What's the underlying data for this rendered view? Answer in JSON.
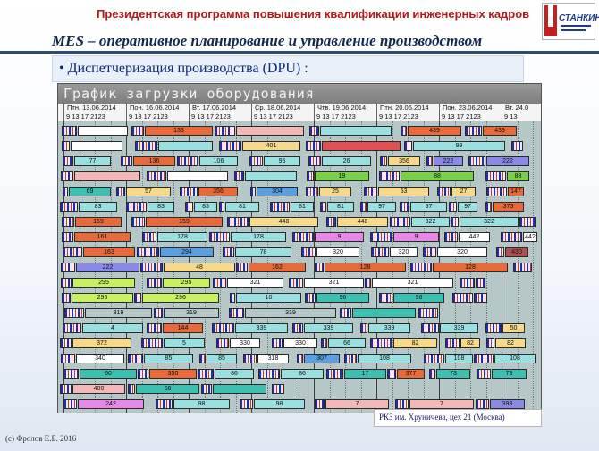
{
  "header": {
    "banner": "Президентская  программа повышения квалификации инженерных кадров",
    "logo_text": "СТАНКИН",
    "subtitle": "MES – оперативное планирование и управление производством",
    "bullet": "• Диспетчеризация производства  (DPU) :"
  },
  "gantt": {
    "title": "График  загрузки  оборудования",
    "days": [
      {
        "label": "Птн. 13.06.2014",
        "hours": "9   13  17  2123"
      },
      {
        "label": "Пон. 16.06.2014",
        "hours": "9   13  17  2123"
      },
      {
        "label": "Вт. 17.06.2014",
        "hours": "9   13  17  2123"
      },
      {
        "label": "Ср. 18.06.2014",
        "hours": "9   13  17  2123"
      },
      {
        "label": "Чтв. 19.06.2014",
        "hours": "9   13  17  2123"
      },
      {
        "label": "Птн. 20.06.2014",
        "hours": "9   13  17  2123"
      },
      {
        "label": "Пон. 23.06.2014",
        "hours": "9   13  17  2123"
      },
      {
        "label": "Вт. 24.0",
        "hours": "9   13"
      }
    ],
    "rows": [
      [
        {
          "t": "",
          "c": "#ffffff"
        },
        {
          "t": "133",
          "c": "#e86a3a"
        },
        {
          "t": "",
          "c": "#f3b7b7"
        },
        {
          "t": "",
          "c": "#9be0e0"
        },
        {
          "t": "439",
          "c": "#e86a3a"
        },
        {
          "t": "439",
          "c": "#e86a3a"
        }
      ],
      [
        {
          "t": "",
          "c": "#ffffff"
        },
        {
          "t": "",
          "c": "#9be0e0"
        },
        {
          "t": "401",
          "c": "#f6d98a"
        },
        {
          "t": "",
          "c": "#e05050"
        },
        {
          "t": "99",
          "c": "#9be0e0"
        }
      ],
      [
        {
          "t": "77",
          "c": "#9be0e0"
        },
        {
          "t": "136",
          "c": "#e86a3a"
        },
        {
          "t": "106",
          "c": "#9be0e0"
        },
        {
          "t": "95",
          "c": "#9be0e0"
        },
        {
          "t": "26",
          "c": "#9be0e0"
        },
        {
          "t": "356",
          "c": "#f6d98a"
        },
        {
          "t": "222",
          "c": "#8a8ae6"
        },
        {
          "t": "222",
          "c": "#8a8ae6"
        }
      ],
      [
        {
          "t": "",
          "c": "#f3b7b7"
        },
        {
          "t": "",
          "c": "#ffffff"
        },
        {
          "t": "",
          "c": "#9be0e0"
        },
        {
          "t": "19",
          "c": "#7ad04a"
        },
        {
          "t": "88",
          "c": "#7ad04a"
        },
        {
          "t": "88",
          "c": "#7ad04a"
        }
      ],
      [
        {
          "t": "69",
          "c": "#3ec0b0"
        },
        {
          "t": "57",
          "c": "#f6d98a"
        },
        {
          "t": "356",
          "c": "#e86a3a"
        },
        {
          "t": "304",
          "c": "#5aa0e0"
        },
        {
          "t": "25",
          "c": "#f6d98a"
        },
        {
          "t": "53",
          "c": "#f6d98a"
        },
        {
          "t": "27",
          "c": "#f6d98a"
        },
        {
          "t": "147",
          "c": "#e86a3a"
        }
      ],
      [
        {
          "t": "83",
          "c": "#9be0e0"
        },
        {
          "t": "83",
          "c": "#9be0e0"
        },
        {
          "t": "83",
          "c": "#9be0e0"
        },
        {
          "t": "81",
          "c": "#9be0e0"
        },
        {
          "t": "81",
          "c": "#9be0e0"
        },
        {
          "t": "81",
          "c": "#9be0e0"
        },
        {
          "t": "97",
          "c": "#9be0e0"
        },
        {
          "t": "97",
          "c": "#9be0e0"
        },
        {
          "t": "97",
          "c": "#9be0e0"
        },
        {
          "t": "373",
          "c": "#e86a3a"
        }
      ],
      [
        {
          "t": "159",
          "c": "#e86a3a"
        },
        {
          "t": "159",
          "c": "#e86a3a"
        },
        {
          "t": "448",
          "c": "#f6d98a"
        },
        {
          "t": "448",
          "c": "#f6d98a"
        },
        {
          "t": "322",
          "c": "#9be0e0"
        },
        {
          "t": "322",
          "c": "#9be0e0"
        }
      ],
      [
        {
          "t": "161",
          "c": "#e86a3a"
        },
        {
          "t": "178",
          "c": "#9be0e0"
        },
        {
          "t": "178",
          "c": "#9be0e0"
        },
        {
          "t": "9",
          "c": "#e888e8"
        },
        {
          "t": "9",
          "c": "#e888e8"
        },
        {
          "t": "442",
          "c": "#ffffff"
        },
        {
          "t": "442",
          "c": "#ffffff"
        }
      ],
      [
        {
          "t": "163",
          "c": "#e86a3a"
        },
        {
          "t": "294",
          "c": "#5aa0e0"
        },
        {
          "t": "78",
          "c": "#9be0e0"
        },
        {
          "t": "320",
          "c": "#ffffff"
        },
        {
          "t": "320",
          "c": "#ffffff"
        },
        {
          "t": "320",
          "c": "#ffffff"
        },
        {
          "t": "430",
          "c": "#b05050"
        }
      ],
      [
        {
          "t": "222",
          "c": "#8a8ae6"
        },
        {
          "t": "48",
          "c": "#f6d98a"
        },
        {
          "t": "162",
          "c": "#e86a3a"
        },
        {
          "t": "128",
          "c": "#e86a3a"
        },
        {
          "t": "128",
          "c": "#e86a3a"
        }
      ],
      [
        {
          "t": "295",
          "c": "#c8f060"
        },
        {
          "t": "295",
          "c": "#c8f060"
        },
        {
          "t": "321",
          "c": "#ffffff"
        },
        {
          "t": "321",
          "c": "#ffffff"
        },
        {
          "t": "321",
          "c": "#ffffff"
        },
        {
          "t": "",
          "c": "#3ec0b0"
        }
      ],
      [
        {
          "t": "296",
          "c": "#c8f060"
        },
        {
          "t": "296",
          "c": "#c8f060"
        },
        {
          "t": "10",
          "c": "#9be0e0"
        },
        {
          "t": "96",
          "c": "#3ec0b0"
        },
        {
          "t": "96",
          "c": "#3ec0b0"
        },
        {
          "t": "96",
          "c": "#3ec0b0"
        }
      ],
      [
        {
          "t": "319",
          "c": "#b6c7c7"
        },
        {
          "t": "319",
          "c": "#b6c7c7"
        },
        {
          "t": "319",
          "c": "#b6c7c7"
        },
        {
          "t": "",
          "c": "#3ec0b0"
        }
      ],
      [
        {
          "t": "4",
          "c": "#9be0e0"
        },
        {
          "t": "144",
          "c": "#e86a3a"
        },
        {
          "t": "339",
          "c": "#9be0e0"
        },
        {
          "t": "339",
          "c": "#9be0e0"
        },
        {
          "t": "339",
          "c": "#9be0e0"
        },
        {
          "t": "339",
          "c": "#9be0e0"
        },
        {
          "t": "50",
          "c": "#f6d98a"
        }
      ],
      [
        {
          "t": "372",
          "c": "#f6d98a"
        },
        {
          "t": "5",
          "c": "#9be0e0"
        },
        {
          "t": "330",
          "c": "#ffffff"
        },
        {
          "t": "330",
          "c": "#ffffff"
        },
        {
          "t": "66",
          "c": "#9be0e0"
        },
        {
          "t": "82",
          "c": "#f6d98a"
        },
        {
          "t": "82",
          "c": "#f6d98a"
        },
        {
          "t": "82",
          "c": "#f6d98a"
        }
      ],
      [
        {
          "t": "340",
          "c": "#ffffff"
        },
        {
          "t": "85",
          "c": "#9be0e0"
        },
        {
          "t": "85",
          "c": "#9be0e0"
        },
        {
          "t": "318",
          "c": "#ffffff"
        },
        {
          "t": "307",
          "c": "#5aa0e0"
        },
        {
          "t": "108",
          "c": "#9be0e0"
        },
        {
          "t": "108",
          "c": "#9be0e0"
        },
        {
          "t": "108",
          "c": "#9be0e0"
        }
      ],
      [
        {
          "t": "60",
          "c": "#3ec0b0"
        },
        {
          "t": "350",
          "c": "#e86a3a"
        },
        {
          "t": "86",
          "c": "#9be0e0"
        },
        {
          "t": "86",
          "c": "#9be0e0"
        },
        {
          "t": "17",
          "c": "#3ec0b0"
        },
        {
          "t": "377",
          "c": "#e86a3a"
        },
        {
          "t": "73",
          "c": "#3ec0b0"
        },
        {
          "t": "73",
          "c": "#3ec0b0"
        }
      ],
      [
        {
          "t": "400",
          "c": "#f3b7b7"
        },
        {
          "t": "68",
          "c": "#3ec0b0"
        },
        {
          "t": "",
          "c": "#3ec0b0"
        }
      ],
      [
        {
          "t": "242",
          "c": "#e888e8"
        },
        {
          "t": "98",
          "c": "#9be0e0"
        },
        {
          "t": "98",
          "c": "#9be0e0"
        },
        {
          "t": "7",
          "c": "#f3b7b7"
        },
        {
          "t": "7",
          "c": "#f3b7b7"
        },
        {
          "t": "393",
          "c": "#8a8ae6"
        }
      ]
    ]
  },
  "caption": "РКЗ им. Хруничева, цех 21  (Москва)",
  "footer": "(с) Фролов  Е.Б. 2016"
}
